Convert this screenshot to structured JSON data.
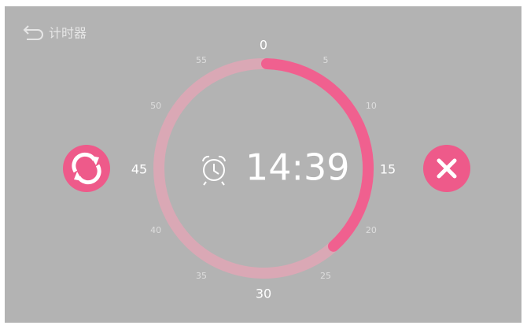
{
  "header": {
    "title": "计时器"
  },
  "timer": {
    "time": "14:39",
    "dial_labels": [
      0,
      5,
      10,
      15,
      20,
      25,
      30,
      35,
      40,
      45,
      50,
      55
    ],
    "progress_minutes": 23
  }
}
